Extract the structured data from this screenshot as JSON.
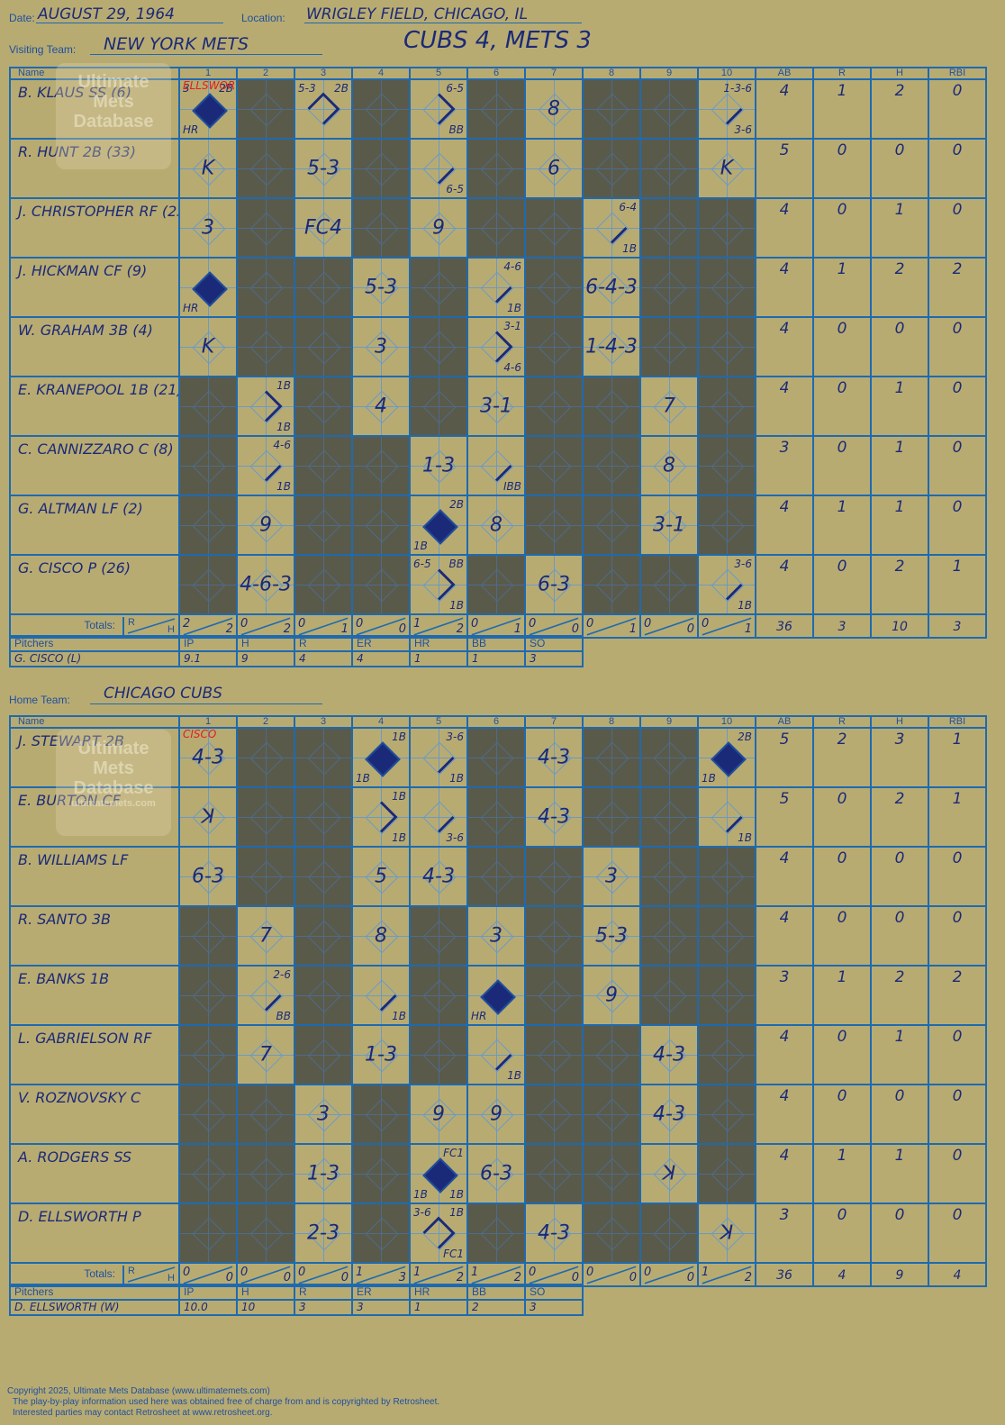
{
  "header": {
    "date_label": "Date:",
    "date": "AUGUST 29, 1964",
    "location_label": "Location:",
    "location": "WRIGLEY FIELD, CHICAGO, IL",
    "visiting_label": "Visiting Team:",
    "visiting_team": "NEW YORK METS",
    "result": "CUBS 4, METS 3",
    "home_label": "Home Team:",
    "home_team": "CHICAGO CUBS"
  },
  "columns": {
    "name": "Name",
    "innings": [
      "1",
      "2",
      "3",
      "4",
      "5",
      "6",
      "7",
      "8",
      "9",
      "10"
    ],
    "stats": [
      "AB",
      "R",
      "H",
      "RBI"
    ],
    "totals": "Totals:",
    "r": "R",
    "h": "H"
  },
  "pitcher_columns": [
    "Pitchers",
    "IP",
    "H",
    "R",
    "ER",
    "HR",
    "BB",
    "SO"
  ],
  "watermark": {
    "line1": "Ultimate",
    "line2": "Mets",
    "line3": "Database",
    "url": "ultimatemets.com"
  },
  "visitors": {
    "rows": [
      {
        "name": "B. KLAUS SS (6)",
        "stats": [
          "4",
          "1",
          "2",
          "0"
        ],
        "cells": [
          {
            "ab": true,
            "run": true,
            "tl": "3",
            "tr": "2B",
            "bl": "HR",
            "sub": "ELLSWORTH"
          },
          {},
          {
            "ab": true,
            "tl": "5-3",
            "tr": "2B",
            "path": 3
          },
          {},
          {
            "ab": true,
            "tr": "6-5",
            "br": "BB",
            "path": 2
          },
          {},
          {
            "ab": true,
            "res": "8"
          },
          {},
          {},
          {
            "ab": true,
            "tr": "1-3-6",
            "br": "3-6",
            "path": 1
          }
        ]
      },
      {
        "name": "R. HUNT 2B (33)",
        "stats": [
          "5",
          "0",
          "0",
          "0"
        ],
        "cells": [
          {
            "ab": true,
            "res": "K"
          },
          {},
          {
            "ab": true,
            "res": "5-3"
          },
          {},
          {
            "ab": true,
            "br": "6-5",
            "path": 1
          },
          {},
          {
            "ab": true,
            "res": "6"
          },
          {},
          {},
          {
            "ab": true,
            "res": "K"
          }
        ]
      },
      {
        "name": "J. CHRISTOPHER RF (23)",
        "stats": [
          "4",
          "0",
          "1",
          "0"
        ],
        "cells": [
          {
            "ab": true,
            "res": "3"
          },
          {},
          {
            "ab": true,
            "res": "FC4"
          },
          {},
          {
            "ab": true,
            "res": "9"
          },
          {},
          {},
          {
            "ab": true,
            "tr": "6-4",
            "br": "1B",
            "path": 1
          },
          {},
          {}
        ]
      },
      {
        "name": "J. HICKMAN CF (9)",
        "stats": [
          "4",
          "1",
          "2",
          "2"
        ],
        "cells": [
          {
            "ab": true,
            "run": true,
            "bl": "HR"
          },
          {},
          {},
          {
            "ab": true,
            "res": "5-3"
          },
          {},
          {
            "ab": true,
            "tr": "4-6",
            "br": "1B",
            "path": 1
          },
          {},
          {
            "ab": true,
            "res": "6-4-3"
          },
          {},
          {}
        ]
      },
      {
        "name": "W. GRAHAM 3B (4)",
        "stats": [
          "4",
          "0",
          "0",
          "0"
        ],
        "cells": [
          {
            "ab": true,
            "res": "K"
          },
          {},
          {},
          {
            "ab": true,
            "res": "3"
          },
          {},
          {
            "ab": true,
            "tr": "3-1",
            "br": "4-6",
            "path": 2
          },
          {},
          {
            "ab": true,
            "res": "1-4-3"
          },
          {},
          {}
        ]
      },
      {
        "name": "E. KRANEPOOL 1B (21)",
        "stats": [
          "4",
          "0",
          "1",
          "0"
        ],
        "cells": [
          {},
          {
            "ab": true,
            "tr": "1B",
            "br": "1B",
            "path": 2
          },
          {},
          {
            "ab": true,
            "res": "4"
          },
          {},
          {
            "ab": true,
            "res": "3-1"
          },
          {},
          {},
          {
            "ab": true,
            "res": "7"
          },
          {}
        ]
      },
      {
        "name": "C. CANNIZZARO C (8)",
        "stats": [
          "3",
          "0",
          "1",
          "0"
        ],
        "cells": [
          {},
          {
            "ab": true,
            "tr": "4-6",
            "br": "1B",
            "path": 1
          },
          {},
          {},
          {
            "ab": true,
            "res": "1-3"
          },
          {
            "ab": true,
            "br": "IBB",
            "path": 1
          },
          {},
          {},
          {
            "ab": true,
            "res": "8"
          },
          {}
        ]
      },
      {
        "name": "G. ALTMAN LF (2)",
        "stats": [
          "4",
          "1",
          "1",
          "0"
        ],
        "cells": [
          {},
          {
            "ab": true,
            "res": "9"
          },
          {},
          {},
          {
            "ab": true,
            "run": true,
            "tr": "2B",
            "bl": "1B"
          },
          {
            "ab": true,
            "res": "8"
          },
          {},
          {},
          {
            "ab": true,
            "res": "3-1"
          },
          {}
        ]
      },
      {
        "name": "G. CISCO P (26)",
        "stats": [
          "4",
          "0",
          "2",
          "1"
        ],
        "cells": [
          {},
          {
            "ab": true,
            "res": "4-6-3"
          },
          {},
          {},
          {
            "ab": true,
            "tl": "6-5",
            "tr": "BB",
            "br": "1B",
            "path": 2
          },
          {},
          {
            "ab": true,
            "res": "6-3"
          },
          {},
          {},
          {
            "ab": true,
            "tr": "3-6",
            "br": "1B",
            "path": 1
          }
        ]
      }
    ],
    "totals": {
      "innings": [
        [
          "2",
          "2"
        ],
        [
          "0",
          "2"
        ],
        [
          "0",
          "1"
        ],
        [
          "0",
          "0"
        ],
        [
          "1",
          "2"
        ],
        [
          "0",
          "1"
        ],
        [
          "0",
          "0"
        ],
        [
          "0",
          "1"
        ],
        [
          "0",
          "0"
        ],
        [
          "0",
          "1"
        ]
      ],
      "stats": [
        "36",
        "3",
        "10",
        "3"
      ]
    },
    "pitchers": [
      [
        "G. CISCO (L)",
        "9.1",
        "9",
        "4",
        "4",
        "1",
        "1",
        "3"
      ]
    ]
  },
  "home": {
    "rows": [
      {
        "name": "J. STEWART 2B",
        "stats": [
          "5",
          "2",
          "3",
          "1"
        ],
        "cells": [
          {
            "ab": true,
            "res": "4-3",
            "sub": "CISCO"
          },
          {},
          {},
          {
            "ab": true,
            "run": true,
            "tr": "1B",
            "bl": "1B"
          },
          {
            "ab": true,
            "tr": "3-6",
            "br": "1B",
            "path": 1
          },
          {},
          {
            "ab": true,
            "res": "4-3"
          },
          {},
          {},
          {
            "ab": true,
            "run": true,
            "tr": "2B",
            "bl": "1B"
          }
        ]
      },
      {
        "name": "E. BURTON CF",
        "stats": [
          "5",
          "0",
          "2",
          "1"
        ],
        "cells": [
          {
            "ab": true,
            "res": "ꓘ"
          },
          {},
          {},
          {
            "ab": true,
            "tr": "1B",
            "br": "1B",
            "path": 2
          },
          {
            "ab": true,
            "br": "3-6",
            "path": 1
          },
          {},
          {
            "ab": true,
            "res": "4-3"
          },
          {},
          {},
          {
            "ab": true,
            "br": "1B",
            "path": 1
          }
        ]
      },
      {
        "name": "B. WILLIAMS LF",
        "stats": [
          "4",
          "0",
          "0",
          "0"
        ],
        "cells": [
          {
            "ab": true,
            "res": "6-3"
          },
          {},
          {},
          {
            "ab": true,
            "res": "5"
          },
          {
            "ab": true,
            "res": "4-3"
          },
          {},
          {},
          {
            "ab": true,
            "res": "3"
          },
          {},
          {}
        ]
      },
      {
        "name": "R. SANTO 3B",
        "stats": [
          "4",
          "0",
          "0",
          "0"
        ],
        "cells": [
          {},
          {
            "ab": true,
            "res": "7"
          },
          {},
          {
            "ab": true,
            "res": "8"
          },
          {},
          {
            "ab": true,
            "res": "3"
          },
          {},
          {
            "ab": true,
            "res": "5-3"
          },
          {},
          {}
        ]
      },
      {
        "name": "E. BANKS 1B",
        "stats": [
          "3",
          "1",
          "2",
          "2"
        ],
        "cells": [
          {},
          {
            "ab": true,
            "tr": "2-6",
            "br": "BB",
            "path": 1
          },
          {},
          {
            "ab": true,
            "br": "1B",
            "path": 1
          },
          {},
          {
            "ab": true,
            "run": true,
            "bl": "HR"
          },
          {},
          {
            "ab": true,
            "res": "9"
          },
          {},
          {}
        ]
      },
      {
        "name": "L. GABRIELSON RF",
        "stats": [
          "4",
          "0",
          "1",
          "0"
        ],
        "cells": [
          {},
          {
            "ab": true,
            "res": "7"
          },
          {},
          {
            "ab": true,
            "res": "1-3"
          },
          {},
          {
            "ab": true,
            "br": "1B",
            "path": 1
          },
          {},
          {},
          {
            "ab": true,
            "res": "4-3"
          },
          {}
        ]
      },
      {
        "name": "V. ROZNOVSKY C",
        "stats": [
          "4",
          "0",
          "0",
          "0"
        ],
        "cells": [
          {},
          {},
          {
            "ab": true,
            "res": "3"
          },
          {},
          {
            "ab": true,
            "res": "9"
          },
          {
            "ab": true,
            "res": "9"
          },
          {},
          {},
          {
            "ab": true,
            "res": "4-3"
          },
          {}
        ]
      },
      {
        "name": "A. RODGERS SS",
        "stats": [
          "4",
          "1",
          "1",
          "0"
        ],
        "cells": [
          {},
          {},
          {
            "ab": true,
            "res": "1-3"
          },
          {},
          {
            "ab": true,
            "run": true,
            "tr": "FC1",
            "bl": "1B",
            "br": "1B"
          },
          {
            "ab": true,
            "res": "6-3"
          },
          {},
          {},
          {
            "ab": true,
            "res": "ꓘ"
          },
          {}
        ]
      },
      {
        "name": "D. ELLSWORTH P",
        "stats": [
          "3",
          "0",
          "0",
          "0"
        ],
        "cells": [
          {},
          {},
          {
            "ab": true,
            "res": "2-3"
          },
          {},
          {
            "ab": true,
            "tl": "3-6",
            "tr": "1B",
            "br": "FC1",
            "path": 3
          },
          {},
          {
            "ab": true,
            "res": "4-3"
          },
          {},
          {},
          {
            "ab": true,
            "res": "ꓘ"
          }
        ]
      }
    ],
    "totals": {
      "innings": [
        [
          "0",
          "0"
        ],
        [
          "0",
          "0"
        ],
        [
          "0",
          "0"
        ],
        [
          "1",
          "3"
        ],
        [
          "1",
          "2"
        ],
        [
          "1",
          "2"
        ],
        [
          "0",
          "0"
        ],
        [
          "0",
          "0"
        ],
        [
          "0",
          "0"
        ],
        [
          "1",
          "2"
        ]
      ],
      "stats": [
        "36",
        "4",
        "9",
        "4"
      ]
    },
    "pitchers": [
      [
        "D. ELLSWORTH (W)",
        "10.0",
        "10",
        "3",
        "3",
        "1",
        "2",
        "3"
      ]
    ]
  },
  "footer": {
    "line1": "Copyright 2025, Ultimate Mets Database (www.ultimatemets.com)",
    "line2": "The play-by-play information used here was obtained free of charge from and is copyrighted by Retrosheet.",
    "line3": "Interested parties may contact Retrosheet at www.retrosheet.org."
  },
  "colors": {
    "background": "#b8ab72",
    "grid": "#1e6ab0",
    "ink": "#1b2a78",
    "unused_inning": "#5a5a4a",
    "substitution": "#e02020"
  }
}
